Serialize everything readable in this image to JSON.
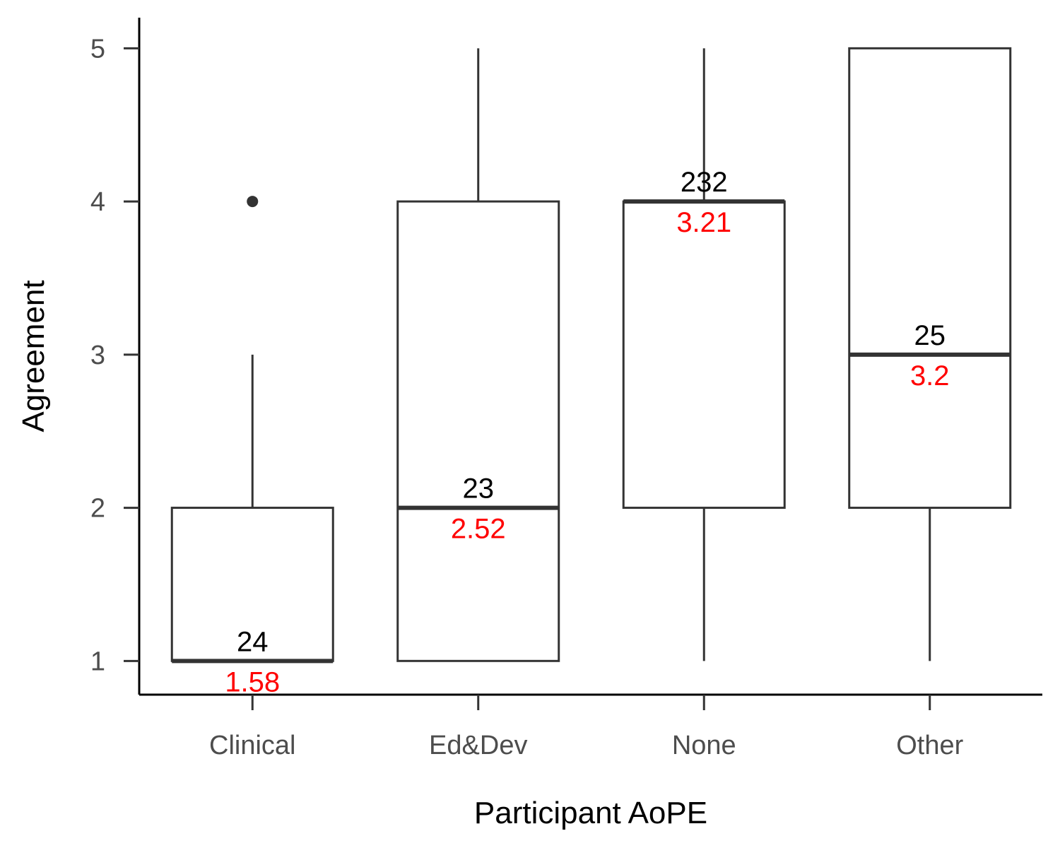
{
  "chart_data": {
    "type": "boxplot",
    "xlabel": "Participant AoPE",
    "ylabel": "Agreement",
    "ylim": [
      0.78,
      5.2
    ],
    "yticks": [
      1,
      2,
      3,
      4,
      5
    ],
    "grid": false,
    "colors": {
      "box": "#333333",
      "mean_label": "#ff0000",
      "count_label": "#000000",
      "axis": "#000000"
    },
    "categories": [
      "Clinical",
      "Ed&Dev",
      "None",
      "Other"
    ],
    "boxes": [
      {
        "category": "Clinical",
        "whisker_low": 1,
        "q1": 1,
        "median": 1,
        "q3": 2,
        "whisker_high": 3,
        "outliers": [
          4
        ],
        "count": "24",
        "mean": "1.58"
      },
      {
        "category": "Ed&Dev",
        "whisker_low": 1,
        "q1": 1,
        "median": 2,
        "q3": 4,
        "whisker_high": 5,
        "outliers": [],
        "count": "23",
        "mean": "2.52"
      },
      {
        "category": "None",
        "whisker_low": 1,
        "q1": 2,
        "median": 4,
        "q3": 4,
        "whisker_high": 5,
        "outliers": [],
        "count": "232",
        "mean": "3.21"
      },
      {
        "category": "Other",
        "whisker_low": 1,
        "q1": 2,
        "median": 3,
        "q3": 5,
        "whisker_high": 5,
        "outliers": [],
        "count": "25",
        "mean": "3.2"
      }
    ]
  }
}
